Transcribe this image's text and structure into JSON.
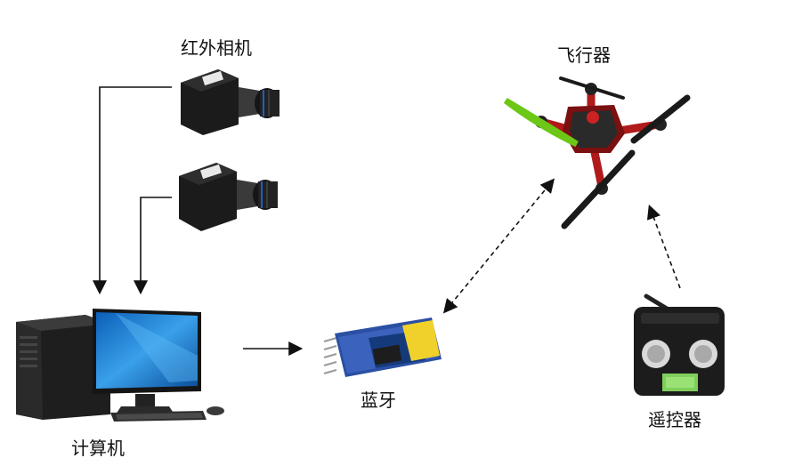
{
  "labels": {
    "ir_camera": "红外相机",
    "aircraft": "飞行器",
    "computer": "计算机",
    "bluetooth": "蓝牙",
    "remote": "遥控器"
  },
  "colors": {
    "arrow": "#111111",
    "camera_body": "#1c1c1c",
    "monitor_screen": "#1f7fd6",
    "bluetooth_board": "#2b4fa3",
    "propeller_green": "#7ddc1f",
    "propeller_black": "#1a1a1a",
    "drone_frame_red": "#b01a1a"
  },
  "icons": [
    "ir-camera-top-icon",
    "ir-camera-bottom-icon",
    "desktop-computer-icon",
    "bluetooth-module-icon",
    "quadcopter-drone-icon",
    "rc-transmitter-icon"
  ]
}
